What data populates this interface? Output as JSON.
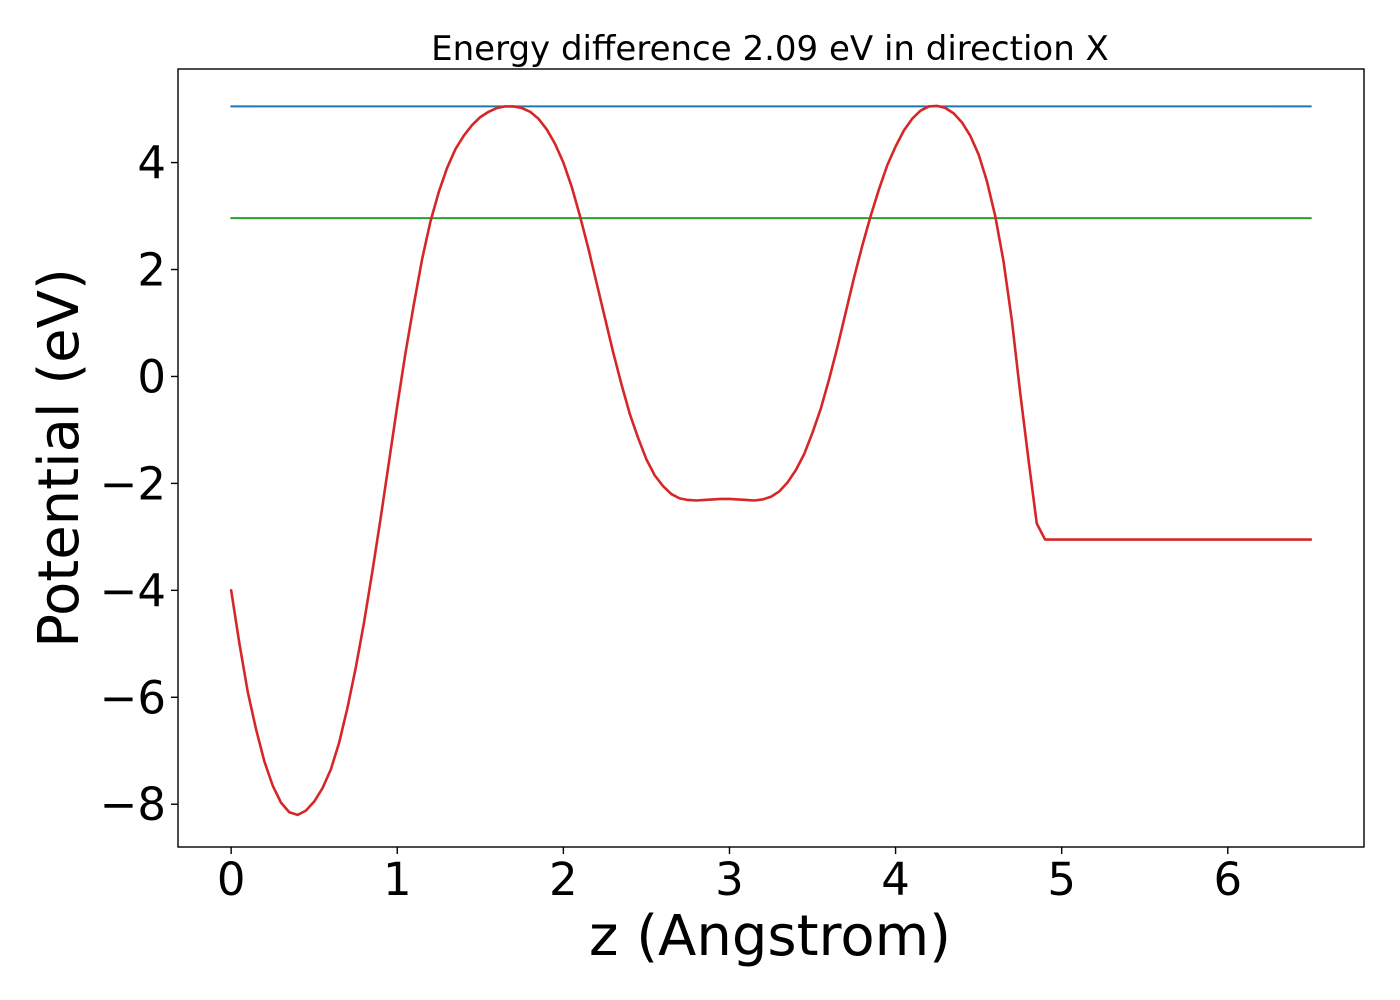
{
  "chart_data": {
    "type": "line",
    "title": "Energy difference 2.09 eV in direction X",
    "xlabel": "z (Angstrom)",
    "ylabel": "Potential (eV)",
    "xlim": [
      -0.32,
      6.82
    ],
    "ylim": [
      -8.8,
      5.75
    ],
    "grid": false,
    "xticks": [
      0,
      1,
      2,
      3,
      4,
      5,
      6
    ],
    "xtick_labels": [
      "0",
      "1",
      "2",
      "3",
      "4",
      "5",
      "6"
    ],
    "yticks": [
      4,
      2,
      0,
      -2,
      -4,
      -6,
      -8
    ],
    "ytick_labels": [
      "4",
      "2",
      "0",
      "−2",
      "−4",
      "−6",
      "−8"
    ],
    "series": [
      {
        "color": "#d62728",
        "kind": "curve",
        "x": [
          0,
          0.05,
          0.1,
          0.15,
          0.2,
          0.25,
          0.3,
          0.35,
          0.4,
          0.45,
          0.5,
          0.55,
          0.6,
          0.65,
          0.7,
          0.75,
          0.8,
          0.85,
          0.9,
          0.95,
          1.0,
          1.05,
          1.1,
          1.15,
          1.2,
          1.25,
          1.3,
          1.35,
          1.4,
          1.45,
          1.5,
          1.55,
          1.6,
          1.65,
          1.7,
          1.75,
          1.8,
          1.85,
          1.9,
          1.95,
          2.0,
          2.05,
          2.1,
          2.15,
          2.2,
          2.25,
          2.3,
          2.35,
          2.4,
          2.45,
          2.5,
          2.55,
          2.6,
          2.65,
          2.7,
          2.75,
          2.8,
          2.85,
          2.9,
          2.95,
          3.0,
          3.05,
          3.1,
          3.15,
          3.2,
          3.25,
          3.3,
          3.35,
          3.4,
          3.45,
          3.5,
          3.55,
          3.6,
          3.65,
          3.7,
          3.75,
          3.8,
          3.85,
          3.9,
          3.95,
          4.0,
          4.05,
          4.1,
          4.15,
          4.2,
          4.25,
          4.3,
          4.35,
          4.4,
          4.45,
          4.5,
          4.55,
          4.6,
          4.65,
          4.7,
          4.75,
          4.8,
          4.85,
          4.9,
          4.95,
          5.0,
          5.05,
          5.1,
          5.15,
          5.2,
          5.25,
          5.3,
          5.35,
          5.4,
          5.45,
          5.5,
          5.55,
          5.6,
          5.65,
          5.7,
          5.75,
          5.8,
          5.85,
          5.9,
          5.95,
          6.0,
          6.05,
          6.1,
          6.15,
          6.2,
          6.25,
          6.3,
          6.35,
          6.4,
          6.45,
          6.5
        ],
        "y": [
          -4.0,
          -5.0,
          -5.9,
          -6.6,
          -7.2,
          -7.65,
          -7.97,
          -8.15,
          -8.2,
          -8.12,
          -7.95,
          -7.7,
          -7.35,
          -6.85,
          -6.2,
          -5.45,
          -4.6,
          -3.65,
          -2.65,
          -1.6,
          -0.55,
          0.45,
          1.35,
          2.2,
          2.9,
          3.45,
          3.9,
          4.25,
          4.5,
          4.7,
          4.85,
          4.95,
          5.02,
          5.05,
          5.05,
          5.02,
          4.95,
          4.82,
          4.62,
          4.35,
          4.0,
          3.55,
          3.0,
          2.4,
          1.75,
          1.1,
          0.45,
          -0.15,
          -0.7,
          -1.15,
          -1.55,
          -1.85,
          -2.05,
          -2.2,
          -2.28,
          -2.31,
          -2.32,
          -2.31,
          -2.3,
          -2.29,
          -2.29,
          -2.3,
          -2.31,
          -2.32,
          -2.3,
          -2.25,
          -2.15,
          -1.98,
          -1.75,
          -1.45,
          -1.05,
          -0.6,
          -0.05,
          0.55,
          1.2,
          1.85,
          2.45,
          3.0,
          3.5,
          3.95,
          4.3,
          4.6,
          4.82,
          4.97,
          5.05,
          5.06,
          5.02,
          4.92,
          4.75,
          4.5,
          4.15,
          3.65,
          3.0,
          2.15,
          1.05,
          -0.3,
          -1.55,
          -2.75,
          -3.05,
          -3.05,
          -3.05,
          -3.05,
          -3.05,
          -3.05,
          -3.05,
          -3.05,
          -3.05,
          -3.05,
          -3.05,
          -3.05,
          -3.05,
          -3.05,
          -3.05,
          -3.05,
          -3.05,
          -3.05,
          -3.05,
          -3.05,
          -3.05,
          -3.05,
          -3.05,
          -3.05,
          -3.05,
          -3.05,
          -3.05,
          -3.05,
          -3.05,
          -3.05,
          -3.05,
          -3.05,
          -3.05
        ]
      },
      {
        "color": "#1f77b4",
        "kind": "hline",
        "x": [
          0,
          6.5
        ],
        "y": [
          5.05,
          5.05
        ]
      },
      {
        "color": "#2ca02c",
        "kind": "hline",
        "x": [
          0,
          6.5
        ],
        "y": [
          2.96,
          2.96
        ]
      }
    ]
  }
}
